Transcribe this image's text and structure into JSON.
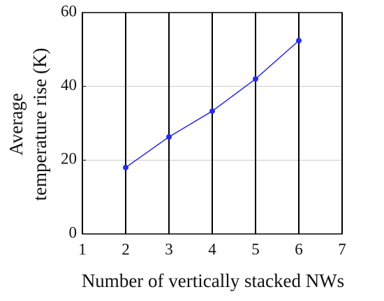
{
  "chart_data": {
    "type": "line",
    "xlabel": "Number of vertically stacked NWs",
    "ylabel": [
      "Average",
      "temperature rise (K)"
    ],
    "x": [
      2,
      3,
      4,
      5,
      6
    ],
    "series": [
      {
        "color": "#2a2ae8",
        "values": [
          18,
          26.3,
          33.3,
          42,
          52.4
        ]
      }
    ],
    "xlim": [
      1,
      7
    ],
    "xticks": [
      1,
      2,
      3,
      4,
      5,
      6,
      7
    ],
    "ylim": [
      0,
      60
    ],
    "yticks": [
      0,
      20,
      40,
      60
    ],
    "grid": true
  }
}
